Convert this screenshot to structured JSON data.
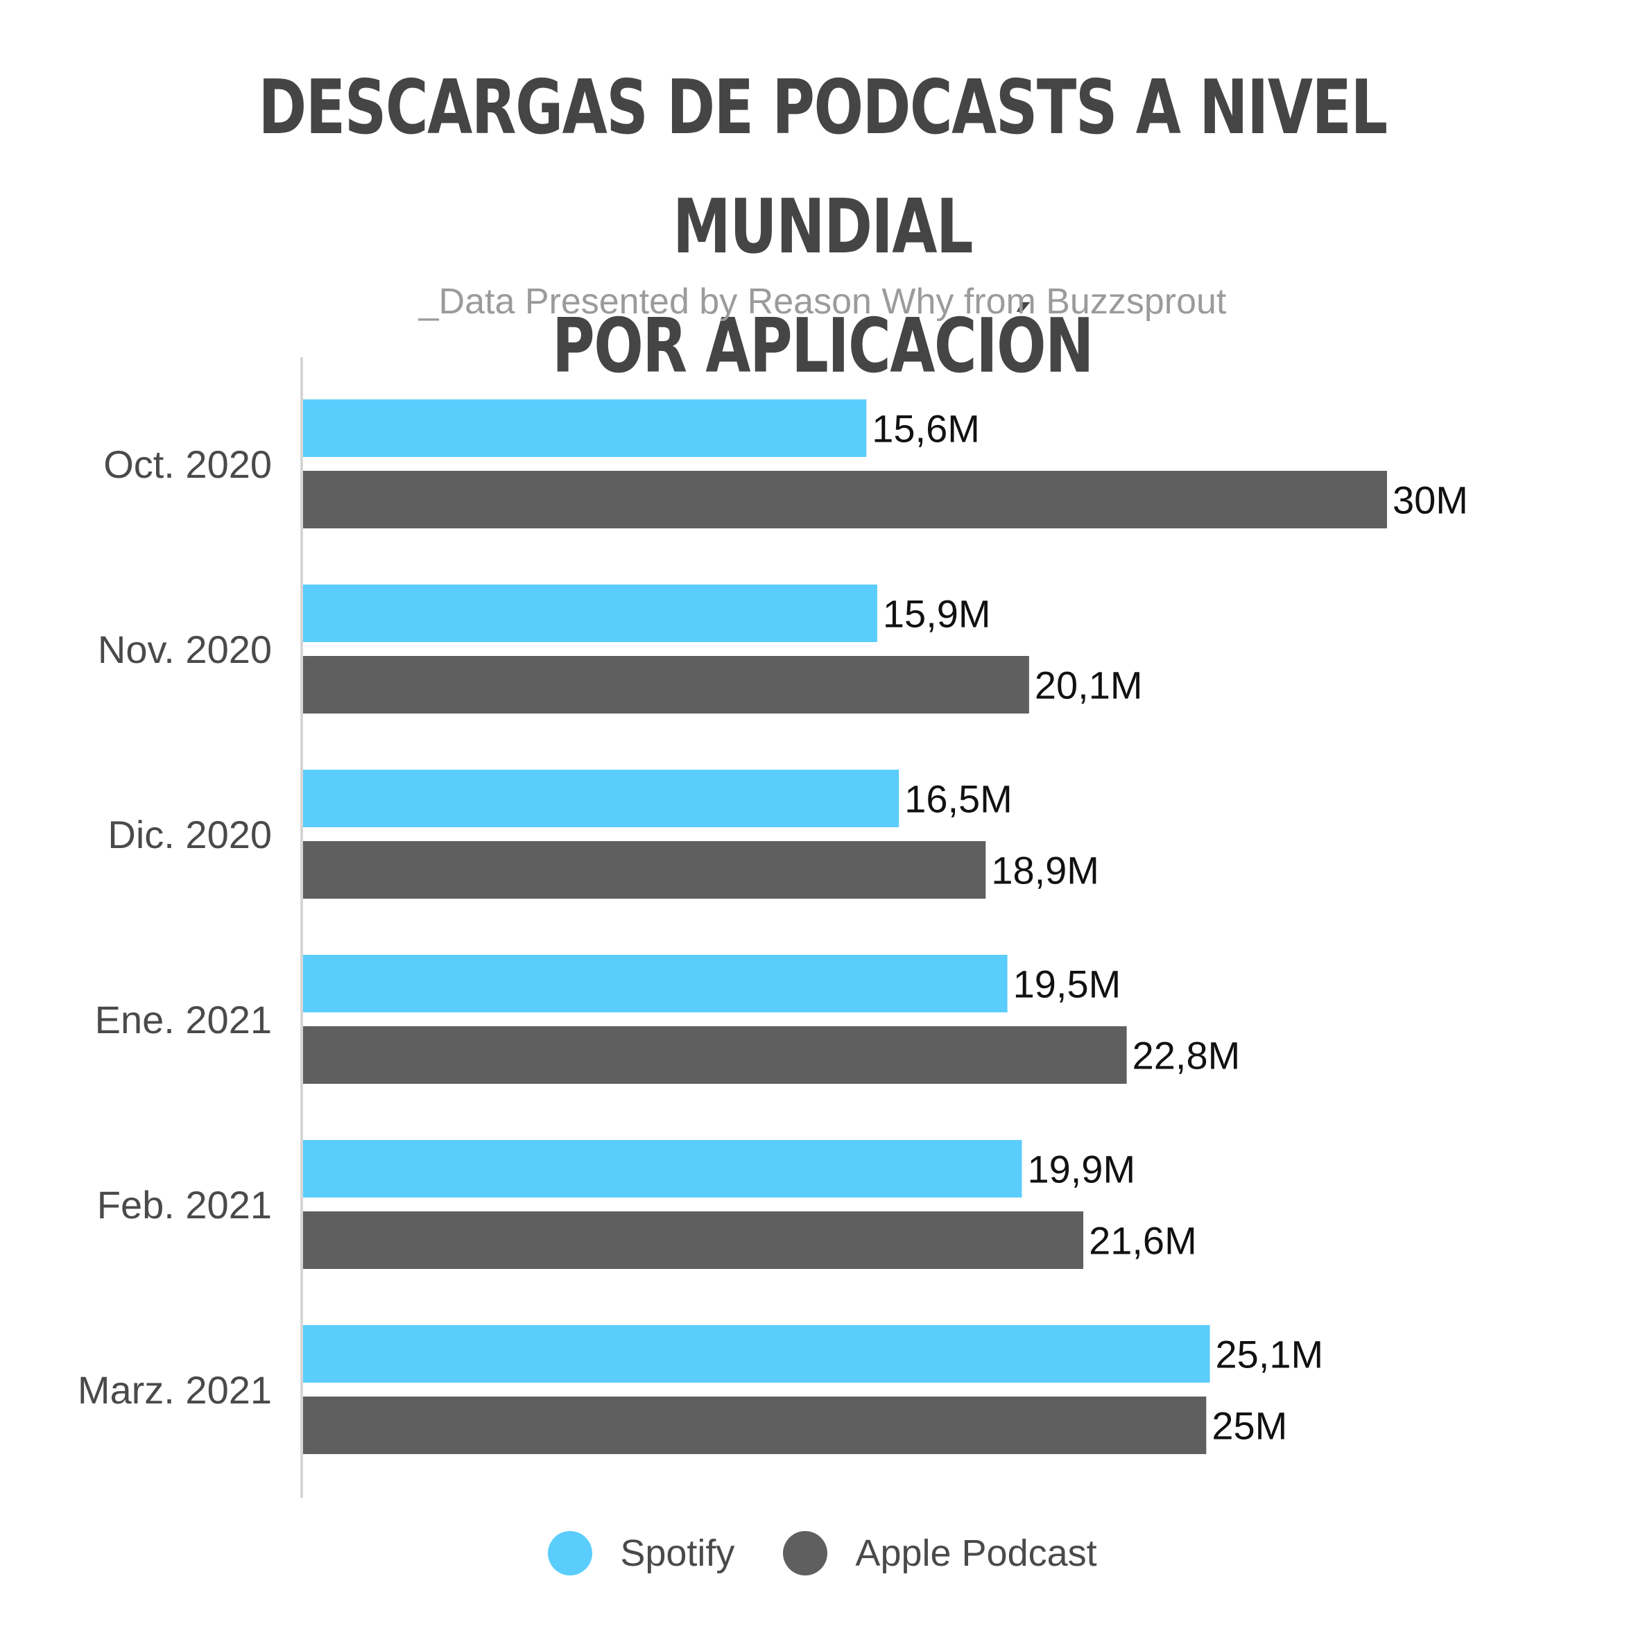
{
  "chart_data": {
    "type": "bar",
    "orientation": "horizontal",
    "title_lines": [
      "DESCARGAS DE PODCASTS A NIVEL MUNDIAL",
      "POR APLICACIÓN"
    ],
    "subtitle": "_Data Presented by Reason Why from Buzzsprout",
    "categories": [
      "Oct. 2020",
      "Nov. 2020",
      "Dic. 2020",
      "Ene. 2021",
      "Feb. 2021",
      "Marz. 2021"
    ],
    "series": [
      {
        "name": "Spotify",
        "color": "#5bcdfc",
        "values": [
          15.6,
          15.9,
          16.5,
          19.5,
          19.9,
          25.1
        ],
        "labels": [
          "15,6M",
          "15,9M",
          "16,5M",
          "19,5M",
          "19,9M",
          "25,1M"
        ]
      },
      {
        "name": "Apple Podcast",
        "color": "#5f5f5f",
        "values": [
          30,
          20.1,
          18.9,
          22.8,
          21.6,
          25
        ],
        "labels": [
          "30M",
          "20,1M",
          "18,9M",
          "22,8M",
          "21,6M",
          "25M"
        ]
      }
    ],
    "xlim": [
      0,
      30
    ],
    "grid": false,
    "legend_position": "bottom-center"
  }
}
